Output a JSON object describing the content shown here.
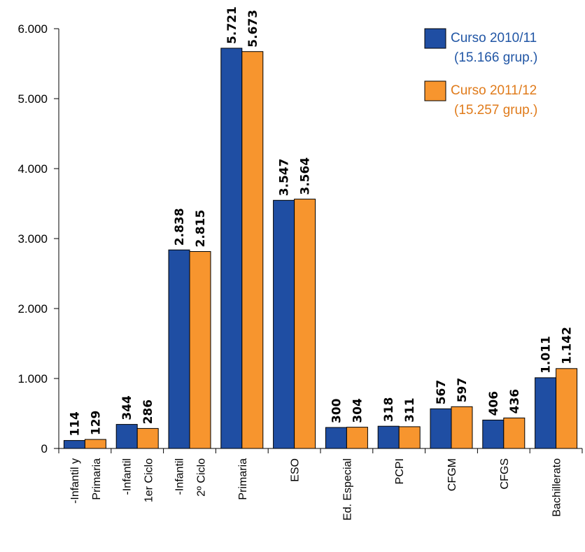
{
  "chart_data": {
    "type": "bar",
    "title": "",
    "xlabel": "",
    "ylabel": "",
    "ylim": [
      0,
      6000
    ],
    "yticks": [
      0,
      1000,
      2000,
      3000,
      4000,
      5000,
      6000
    ],
    "ytick_labels": [
      "0",
      "1.000",
      "2.000",
      "3.000",
      "4.000",
      "5.000",
      "6.000"
    ],
    "grid": false,
    "legend_position": "top-right",
    "categories": [
      [
        "-Infantil y",
        "Primaria"
      ],
      [
        "-Infantil",
        "1er Ciclo"
      ],
      [
        "-Infantil",
        "2º Ciclo"
      ],
      [
        "Primaria"
      ],
      [
        "ESO"
      ],
      [
        "Ed. Especial"
      ],
      [
        "PCPI"
      ],
      [
        "CFGM"
      ],
      [
        "CFGS"
      ],
      [
        "Bachillerato"
      ]
    ],
    "series": [
      {
        "name": "Curso 2010/11",
        "subtitle": "(15.166 grup.)",
        "color": "#1f4ea3",
        "text_color": "#2156a5",
        "values": [
          114,
          344,
          2838,
          5721,
          3547,
          300,
          318,
          567,
          406,
          1011
        ],
        "labels": [
          "114",
          "344",
          "2.838",
          "5.721",
          "3.547",
          "300",
          "318",
          "567",
          "406",
          "1.011"
        ]
      },
      {
        "name": "Curso 2011/12",
        "subtitle": "(15.257 grup.)",
        "color": "#f7952e",
        "text_color": "#e07b1b",
        "values": [
          129,
          286,
          2815,
          5673,
          3564,
          304,
          311,
          597,
          436,
          1142
        ],
        "labels": [
          "129",
          "286",
          "2.815",
          "5.673",
          "3.564",
          "304",
          "311",
          "597",
          "436",
          "1.142"
        ]
      }
    ]
  }
}
